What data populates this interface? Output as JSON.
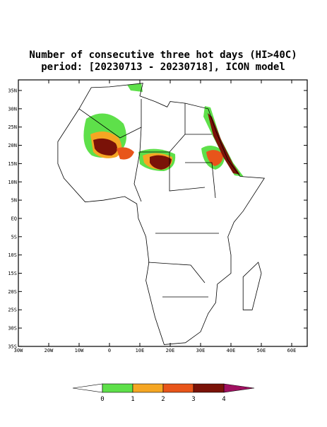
{
  "title": [
    "Number of consecutive three hot days (HI>40C)",
    "period: [20230713 - 20230718], ICON model"
  ],
  "lat_ticks": [
    "35N",
    "30N",
    "25N",
    "20N",
    "15N",
    "10N",
    "5N",
    "EQ",
    "5S",
    "10S",
    "15S",
    "20S",
    "25S",
    "30S",
    "35S"
  ],
  "lon_ticks": [
    "30W",
    "20W",
    "10W",
    "0",
    "10E",
    "20E",
    "30E",
    "40E",
    "50E",
    "60E"
  ],
  "colorbar": {
    "labels": [
      "0",
      "1",
      "2",
      "3",
      "4"
    ],
    "colors": [
      "#ffffff",
      "#5ee04a",
      "#f5a623",
      "#e8551a",
      "#7a1208",
      "#a01060"
    ]
  }
}
